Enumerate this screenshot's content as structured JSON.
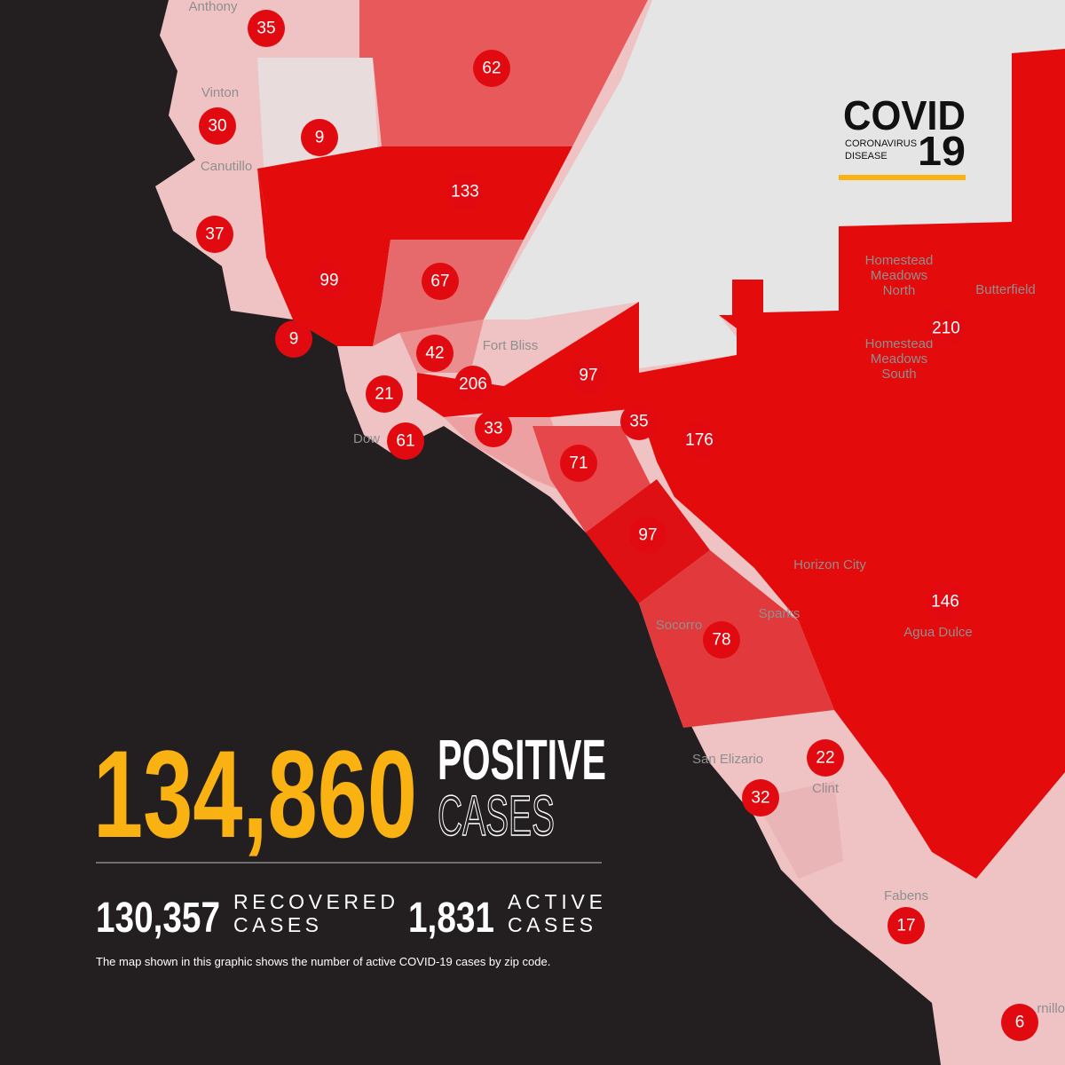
{
  "logo": {
    "title": "COVID",
    "subtitle_line1": "CORONAVIRUS",
    "subtitle_line2": "DISEASE",
    "number": "19"
  },
  "place_labels": [
    [
      "Anthony"
    ],
    [
      "Vinton"
    ],
    [
      "Canutillo"
    ],
    [
      "Fort Bliss"
    ],
    [
      "Dow"
    ],
    [
      "Homestead",
      "Meadows",
      "North"
    ],
    [
      "Butterfield"
    ],
    [
      "Homestead",
      "Meadows",
      "South"
    ],
    [
      "Horizon City"
    ],
    [
      "Sparks"
    ],
    [
      "Socorro"
    ],
    [
      "Agua Dulce"
    ],
    [
      "San Elizario"
    ],
    [
      "Clint"
    ],
    [
      "Fabens"
    ],
    [
      "rnillo"
    ]
  ],
  "zip_markers": [
    35,
    62,
    30,
    9,
    133,
    37,
    99,
    67,
    9,
    42,
    210,
    206,
    97,
    21,
    35,
    176,
    33,
    61,
    71,
    97,
    146,
    78,
    22,
    32,
    17,
    6
  ],
  "totals": {
    "positive_count": "134,860",
    "positive_label_line1": "POSITIVE",
    "positive_label_line2": "CASES",
    "recovered_count": "130,357",
    "recovered_label_line1": "RECOVERED",
    "recovered_label_line2": "CASES",
    "active_count": "1,831",
    "active_label_line1": "ACTIVE",
    "active_label_line2": "CASES"
  },
  "footnote": "The map shown in this graphic shows the number of active COVID-19 cases by zip code."
}
